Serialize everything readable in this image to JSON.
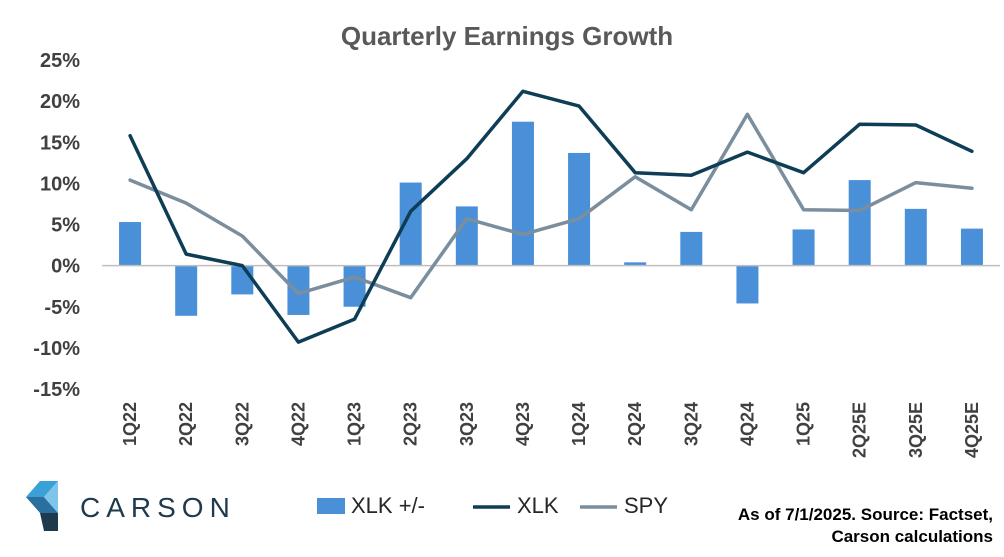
{
  "chart_data": {
    "type": "bar+line",
    "title": "Quarterly Earnings Growth",
    "categories": [
      "1Q22",
      "2Q22",
      "3Q22",
      "4Q22",
      "1Q23",
      "2Q23",
      "3Q23",
      "4Q23",
      "1Q24",
      "2Q24",
      "3Q24",
      "4Q24",
      "1Q25",
      "2Q25E",
      "3Q25E",
      "4Q25E"
    ],
    "yticks": [
      "25%",
      "20%",
      "15%",
      "10%",
      "5%",
      "0%",
      "-5%",
      "-10%",
      "-15%"
    ],
    "ylim": [
      -15,
      25
    ],
    "series": [
      {
        "name": "XLK +/-",
        "kind": "bar",
        "color": "#4a90d9",
        "values": [
          5.3,
          -6.1,
          -3.5,
          -6.0,
          -5.0,
          10.1,
          7.2,
          17.5,
          13.7,
          0.4,
          4.1,
          -4.6,
          4.4,
          10.4,
          6.9,
          4.5
        ]
      },
      {
        "name": "XLK",
        "kind": "line",
        "color": "#0e3d56",
        "values": [
          15.8,
          1.4,
          0.0,
          -9.3,
          -6.5,
          6.6,
          13.0,
          21.2,
          19.4,
          11.3,
          11.0,
          13.8,
          11.3,
          17.2,
          17.1,
          13.9
        ]
      },
      {
        "name": "SPY",
        "kind": "line",
        "color": "#7a8e9e",
        "values": [
          10.4,
          7.6,
          3.6,
          -3.4,
          -1.4,
          -3.9,
          5.7,
          3.8,
          5.7,
          10.8,
          6.8,
          18.4,
          6.8,
          6.7,
          10.1,
          9.4
        ]
      }
    ],
    "legend": "bottom",
    "grid": false
  },
  "source_line1": "As of 7/1/2025. Source: Factset,",
  "source_line2": "Carson calculations",
  "brand": "CARSON"
}
